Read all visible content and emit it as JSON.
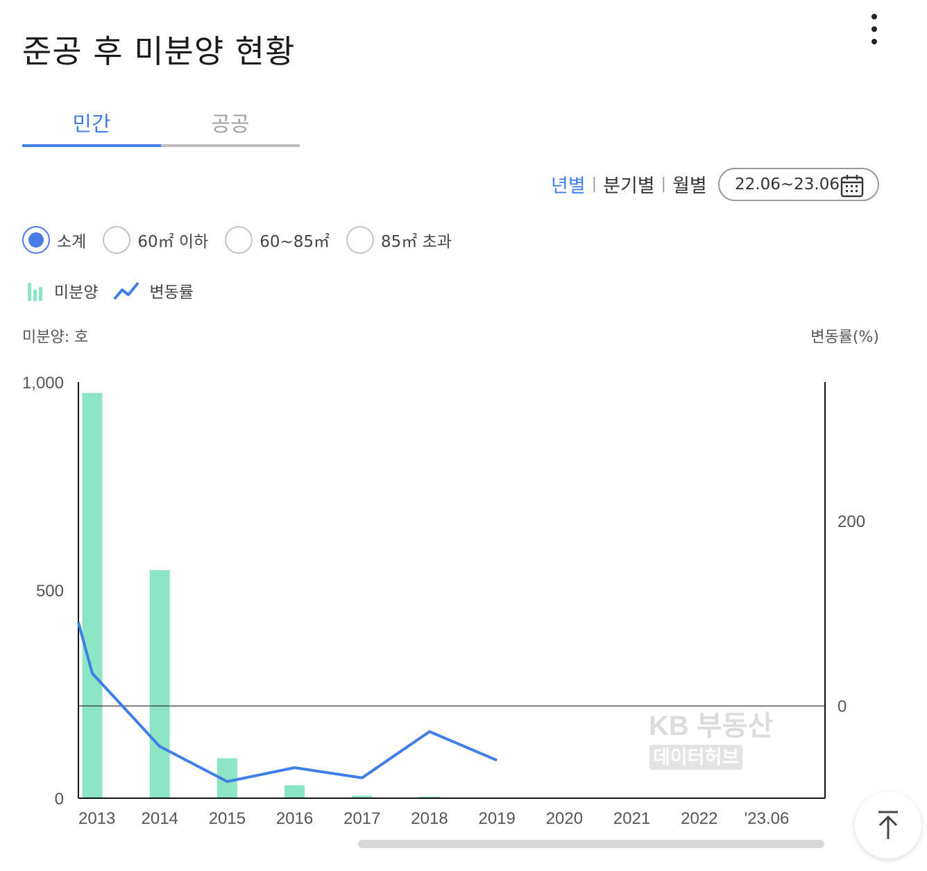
{
  "title": "준공 후 미분양 현황",
  "tabs": [
    {
      "label": "민간",
      "active": true
    },
    {
      "label": "공공",
      "active": false
    }
  ],
  "periods": [
    {
      "label": "년별",
      "active": true
    },
    {
      "label": "분기별",
      "active": false
    },
    {
      "label": "월별",
      "active": false
    }
  ],
  "date_range": "22.06~23.06",
  "radios": [
    {
      "label": "소계",
      "selected": true
    },
    {
      "label": "60㎡ 이하",
      "selected": false
    },
    {
      "label": "60~85㎡",
      "selected": false
    },
    {
      "label": "85㎡ 초과",
      "selected": false
    }
  ],
  "legend": {
    "bar_label": "미분양",
    "line_label": "변동률"
  },
  "units": {
    "left": "미분양: 호",
    "right": "변동률(%)"
  },
  "watermark": {
    "line1": "KB 부동산",
    "line2": "데이터허브"
  },
  "colors": {
    "bar": "#8ce5c4",
    "line": "#3f7ee8",
    "accent": "#3f7ee8"
  },
  "icons": [
    "more-vertical-icon",
    "calendar-icon",
    "bar-legend-icon",
    "line-legend-icon",
    "arrow-up-icon"
  ],
  "chart_data": {
    "type": "bar+line",
    "categories": [
      "2013",
      "2014",
      "2015",
      "2016",
      "2017",
      "2018",
      "2019",
      "2020",
      "2021",
      "2022",
      "'23.06"
    ],
    "series": [
      {
        "name": "미분양",
        "type": "bar",
        "axis": "left",
        "values": [
          974,
          548,
          96,
          31,
          6,
          4,
          1,
          null,
          null,
          null,
          null
        ]
      },
      {
        "name": "변동률",
        "type": "line",
        "axis": "right",
        "values": [
          35,
          -44,
          -82,
          -67,
          -78,
          -28,
          -59,
          null,
          null,
          null,
          null
        ]
      }
    ],
    "y_left": {
      "ticks": [
        "0",
        "500",
        "1,000"
      ],
      "range": [
        0,
        1000
      ]
    },
    "y_right": {
      "ticks": [
        "0",
        "200"
      ],
      "range": [
        -100,
        350
      ]
    },
    "grid": false
  }
}
